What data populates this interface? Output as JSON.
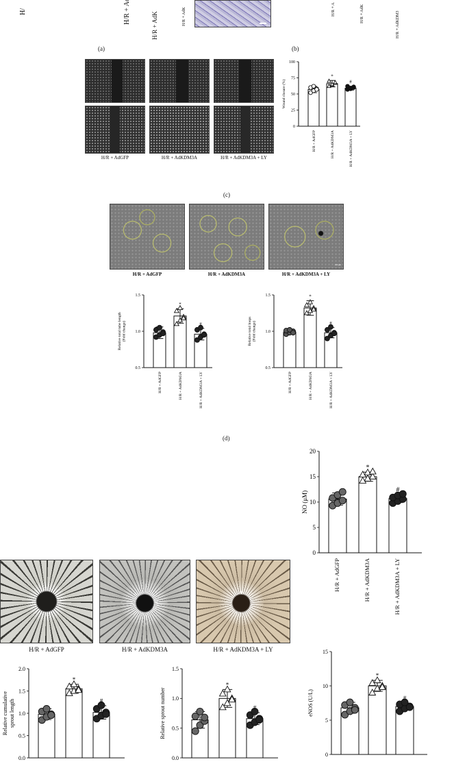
{
  "panel_letters": {
    "a": "(a)",
    "b": "(b)",
    "c": "(c)",
    "d": "(d)"
  },
  "top_fragments": {
    "t1": "H/",
    "t2": "H/R + AdKD",
    "t3": "H/R + AdK",
    "t4": "H/R + A",
    "t5": "H/R + AdK",
    "t6": "H/R + AdKDM3"
  },
  "c_images": {
    "labels": [
      "H/R + AdGFP",
      "H/R + AdKDM3A",
      "H/R + AdKDM3A + LY"
    ]
  },
  "d_images": {
    "labels": [
      "H/R + AdGFP",
      "H/R + AdKDM3A",
      "H/R + AdKDM3A + LY"
    ],
    "scale_bar": "100 μm"
  },
  "e_images": {
    "labels": [
      "H/R + AdGFP",
      "H/R + AdKDM3A",
      "H/R + AdKDM3A + LY"
    ]
  },
  "groups": [
    "H/R + AdGFP",
    "H/R + AdKDM3A",
    "H/R + AdKDM3A + LY"
  ],
  "chart_data": [
    {
      "id": "wound",
      "type": "bar",
      "categories": [
        "H/R + AdGFP",
        "H/R + AdKDM3A",
        "H/R + AdKDM3A + LY"
      ],
      "values": [
        57,
        66,
        59
      ],
      "errors": [
        5,
        5,
        3
      ],
      "ylabel": "Wound closure (%)",
      "ylim": [
        0,
        100
      ],
      "yticks": [
        0,
        25,
        50,
        75,
        100
      ],
      "markers": [
        "*",
        "#"
      ],
      "points": [
        [
          52,
          55,
          58,
          60,
          62,
          57
        ],
        [
          62,
          64,
          67,
          70,
          65,
          68
        ],
        [
          57,
          58,
          60,
          62,
          59,
          61
        ]
      ]
    },
    {
      "id": "tube",
      "type": "bar",
      "categories": [
        "H/R + AdGFP",
        "H/R + AdKDM3A",
        "H/R + AdKDM3A + LY"
      ],
      "values": [
        0.98,
        1.21,
        0.96
      ],
      "errors": [
        0.08,
        0.1,
        0.08
      ],
      "ylabel": "Relative total tube length (Fold change)",
      "ylim": [
        0.5,
        1.5
      ],
      "yticks": [
        0.5,
        1.0,
        1.5
      ],
      "markers": [
        "*",
        "#"
      ],
      "points": [
        [
          0.92,
          0.95,
          0.99,
          1.02,
          1.05,
          0.97
        ],
        [
          1.1,
          1.15,
          1.2,
          1.28,
          1.32,
          1.18
        ],
        [
          0.88,
          0.92,
          0.96,
          1.02,
          1.05,
          0.95
        ]
      ]
    },
    {
      "id": "loops",
      "type": "bar",
      "categories": [
        "H/R + AdGFP",
        "H/R + AdKDM3A",
        "H/R + AdKDM3A + LY"
      ],
      "values": [
        0.99,
        1.32,
        0.98
      ],
      "errors": [
        0.03,
        0.1,
        0.07
      ],
      "ylabel": "Relative total loops (Fold change)",
      "ylim": [
        0.5,
        1.5
      ],
      "yticks": [
        0.5,
        1.0,
        1.5
      ],
      "markers": [
        "*",
        "#"
      ],
      "points": [
        [
          0.96,
          0.98,
          1.0,
          1.01,
          1.02,
          0.98
        ],
        [
          1.25,
          1.28,
          1.32,
          1.36,
          1.4,
          1.3
        ],
        [
          0.9,
          0.94,
          0.98,
          1.02,
          1.06,
          0.97
        ]
      ]
    },
    {
      "id": "no",
      "type": "bar",
      "categories": [
        "H/R + AdGFP",
        "H/R + AdKDM3A",
        "H/R + AdKDM3A + LY"
      ],
      "values": [
        10.6,
        15.0,
        10.7
      ],
      "errors": [
        1.2,
        0.9,
        0.8
      ],
      "ylabel": "NO (μM)",
      "ylim": [
        0,
        20
      ],
      "yticks": [
        0,
        5,
        10,
        15,
        20
      ],
      "markers": [
        "*",
        "#"
      ],
      "points": [
        [
          9.3,
          9.8,
          10.3,
          10.8,
          11.4,
          12.0
        ],
        [
          14.2,
          14.6,
          15.0,
          15.4,
          15.8,
          16.0
        ],
        [
          9.8,
          10.2,
          10.6,
          10.9,
          11.3,
          11.6
        ]
      ]
    },
    {
      "id": "sproutlen",
      "type": "bar",
      "categories": [
        "H/R + AdGFP",
        "H/R + AdKDM3A",
        "H/R + AdKDM3A + LY"
      ],
      "values": [
        0.98,
        1.55,
        1.02
      ],
      "errors": [
        0.12,
        0.1,
        0.15
      ],
      "ylabel": "Relative cumulative sprout length",
      "ylim": [
        0,
        2
      ],
      "yticks": [
        0.0,
        0.5,
        1.0,
        1.5,
        2.0
      ],
      "markers": [
        "*",
        "#"
      ],
      "points": [
        [
          0.85,
          0.92,
          0.98,
          1.04,
          1.1,
          0.96
        ],
        [
          1.45,
          1.5,
          1.55,
          1.6,
          1.65,
          1.52
        ],
        [
          0.88,
          0.95,
          1.02,
          1.1,
          1.18,
          0.98
        ]
      ]
    },
    {
      "id": "sproutnum",
      "type": "bar",
      "categories": [
        "H/R + AdGFP",
        "H/R + AdKDM3A",
        "H/R + AdKDM3A + LY"
      ],
      "values": [
        0.64,
        1.0,
        0.66
      ],
      "errors": [
        0.14,
        0.15,
        0.1
      ],
      "ylabel": "Relative sprout number",
      "ylim": [
        0,
        1.5
      ],
      "yticks": [
        0.0,
        0.5,
        1.0,
        1.5
      ],
      "markers": [
        "*",
        "#"
      ],
      "points": [
        [
          0.45,
          0.55,
          0.62,
          0.7,
          0.78,
          0.68
        ],
        [
          0.85,
          0.92,
          1.0,
          1.08,
          1.15,
          0.98
        ],
        [
          0.55,
          0.6,
          0.66,
          0.72,
          0.78,
          0.64
        ]
      ]
    },
    {
      "id": "enos",
      "type": "bar",
      "categories": [
        "H/R + AdGFP",
        "H/R + AdKDM3A",
        "H/R + AdKDM3A + LY"
      ],
      "values": [
        6.8,
        10.0,
        7.0
      ],
      "errors": [
        0.8,
        0.8,
        0.5
      ],
      "ylabel": "eNOS (U/L)",
      "ylim": [
        0,
        15
      ],
      "yticks": [
        0,
        5,
        10,
        15
      ],
      "markers": [
        "*",
        "#"
      ],
      "points": [
        [
          5.8,
          6.3,
          6.8,
          7.2,
          7.6,
          6.5
        ],
        [
          9.0,
          9.6,
          10.0,
          10.4,
          10.8,
          9.8
        ],
        [
          6.3,
          6.7,
          7.0,
          7.3,
          7.6,
          6.9
        ]
      ]
    }
  ]
}
